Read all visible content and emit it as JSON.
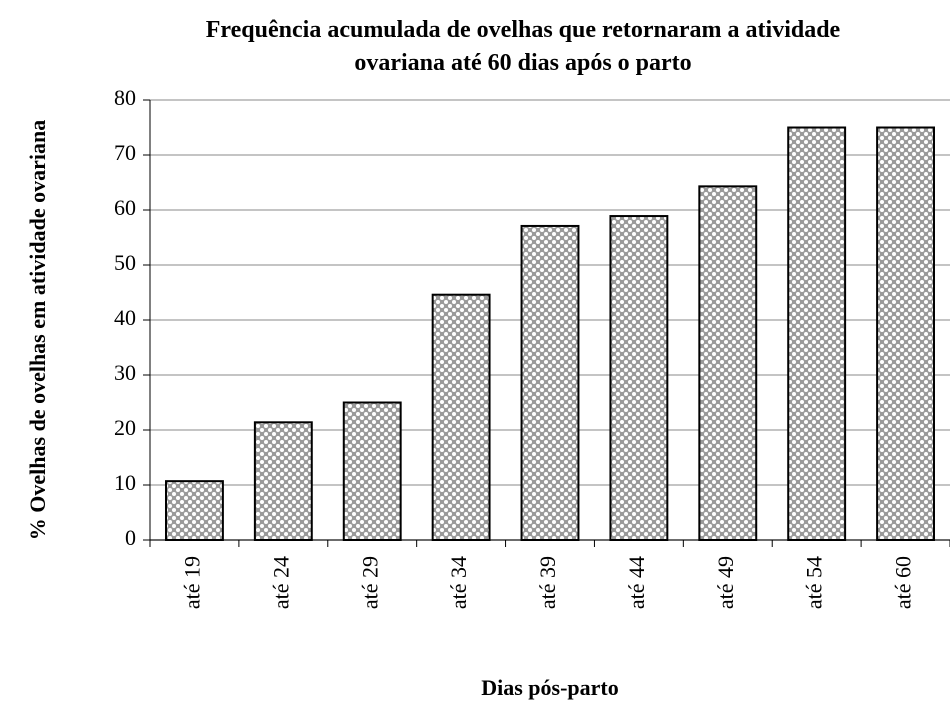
{
  "chart_data": {
    "type": "bar",
    "title": "Frequência acumulada de ovelhas que retornaram a atividade ovariana até 60 dias após o parto",
    "x_label": "Dias pós-parto",
    "y_label": "% Ovelhas de ovelhas em atividade ovariana",
    "categories": [
      "até 19",
      "até 24",
      "até 29",
      "até 34",
      "até 39",
      "até 44",
      "até 49",
      "até 54",
      "até 60"
    ],
    "values": [
      10.7,
      21.4,
      25,
      44.6,
      57.1,
      58.9,
      64.3,
      75,
      75
    ],
    "color": "#9a9a9a",
    "ylim": [
      0,
      80
    ],
    "yticks": [
      0,
      10,
      20,
      30,
      40,
      50,
      60,
      70,
      80
    ],
    "grid": true
  }
}
